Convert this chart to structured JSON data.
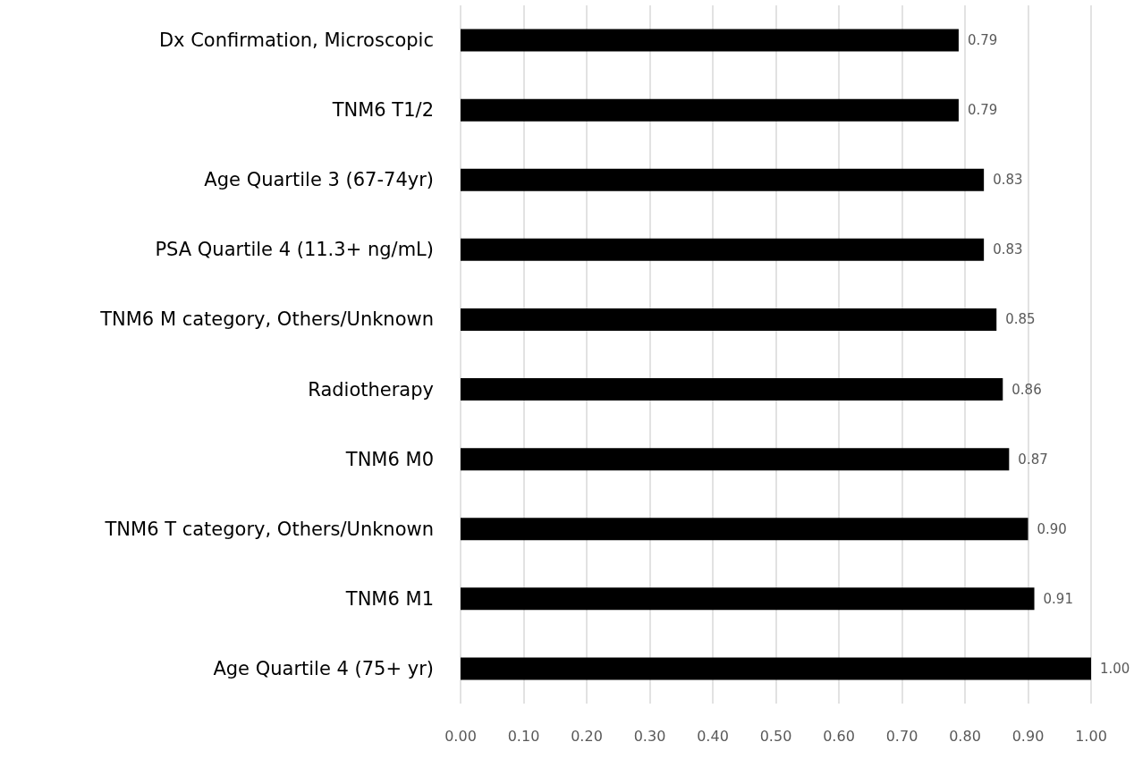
{
  "chart_data": {
    "type": "bar",
    "orientation": "horizontal",
    "categories": [
      "Dx Confirmation, Microscopic",
      "TNM6 T1/2",
      "Age Quartile 3 (67-74yr)",
      "PSA Quartile 4 (11.3+ ng/mL)",
      "TNM6 M category, Others/Unknown",
      "Radiotherapy",
      "TNM6 M0",
      "TNM6 T category, Others/Unknown",
      "TNM6 M1",
      "Age Quartile 4 (75+ yr)"
    ],
    "values": [
      0.79,
      0.79,
      0.83,
      0.83,
      0.85,
      0.86,
      0.87,
      0.9,
      0.91,
      1.0
    ],
    "value_labels": [
      "0.79",
      "0.79",
      "0.83",
      "0.83",
      "0.85",
      "0.86",
      "0.87",
      "0.90",
      "0.91",
      "1.00"
    ],
    "color": "#000000",
    "xlim": [
      0,
      1
    ],
    "xticks": [
      {
        "value": 0,
        "label": "0.00"
      },
      {
        "value": 0.1,
        "label": "0.10"
      },
      {
        "value": 0.2,
        "label": "0.20"
      },
      {
        "value": 0.3,
        "label": "0.30"
      },
      {
        "value": 0.4,
        "label": "0.40"
      },
      {
        "value": 0.5,
        "label": "0.50"
      },
      {
        "value": 0.6,
        "label": "0.60"
      },
      {
        "value": 0.7,
        "label": "0.70"
      },
      {
        "value": 0.8,
        "label": "0.80"
      },
      {
        "value": 0.9,
        "label": "0.90"
      },
      {
        "value": 1,
        "label": "1.00"
      }
    ],
    "grid": "x"
  }
}
